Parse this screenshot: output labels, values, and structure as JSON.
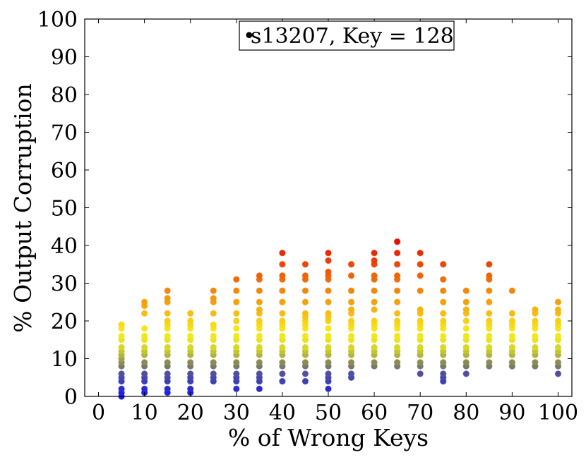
{
  "chart_data": {
    "type": "scatter",
    "legend": {
      "label": "s13207, Key = 128",
      "marker": "•",
      "placement": "top-center"
    },
    "xlabel": "% of Wrong Keys",
    "ylabel": "% Output Corruption",
    "xlim": [
      -3,
      103
    ],
    "ylim": [
      0,
      100
    ],
    "xticks": [
      0,
      10,
      20,
      30,
      40,
      50,
      60,
      70,
      80,
      90,
      100
    ],
    "yticks": [
      0,
      10,
      20,
      30,
      40,
      50,
      60,
      70,
      80,
      90,
      100
    ],
    "grid": false,
    "colormap": "low=#1a1aff, mid=#f5f01e, high=#e60000",
    "points": [
      {
        "x": 5,
        "ys": [
          0,
          1,
          2,
          4,
          5,
          6,
          8,
          9,
          10,
          11,
          12,
          13,
          15,
          16,
          18,
          19
        ]
      },
      {
        "x": 10,
        "ys": [
          1,
          2,
          4,
          5,
          6,
          8,
          9,
          11,
          12,
          13,
          15,
          16,
          18,
          22,
          24,
          25
        ]
      },
      {
        "x": 15,
        "ys": [
          1,
          2,
          4,
          5,
          6,
          8,
          9,
          11,
          12,
          13,
          15,
          16,
          18,
          19,
          20,
          22,
          25,
          26,
          28
        ]
      },
      {
        "x": 20,
        "ys": [
          1,
          2,
          4,
          5,
          6,
          8,
          9,
          11,
          12,
          13,
          15,
          16,
          18,
          19,
          20,
          22
        ]
      },
      {
        "x": 25,
        "ys": [
          4,
          5,
          6,
          8,
          9,
          11,
          12,
          13,
          15,
          16,
          18,
          19,
          22,
          25,
          26,
          28
        ]
      },
      {
        "x": 30,
        "ys": [
          2,
          4,
          5,
          6,
          8,
          9,
          11,
          12,
          13,
          15,
          16,
          18,
          20,
          22,
          25,
          28,
          31
        ]
      },
      {
        "x": 35,
        "ys": [
          2,
          4,
          5,
          6,
          8,
          9,
          11,
          12,
          13,
          15,
          16,
          18,
          19,
          20,
          22,
          23,
          25,
          28,
          31,
          32
        ]
      },
      {
        "x": 40,
        "ys": [
          4,
          6,
          8,
          9,
          11,
          12,
          13,
          15,
          16,
          18,
          19,
          20,
          22,
          25,
          28,
          31,
          32,
          35,
          38
        ]
      },
      {
        "x": 45,
        "ys": [
          4,
          6,
          8,
          9,
          11,
          12,
          13,
          15,
          16,
          18,
          19,
          20,
          21,
          22,
          25,
          28,
          31,
          32,
          35
        ]
      },
      {
        "x": 50,
        "ys": [
          2,
          4,
          5,
          6,
          8,
          9,
          11,
          12,
          13,
          15,
          16,
          18,
          20,
          21,
          22,
          25,
          28,
          31,
          32,
          33,
          36,
          38
        ]
      },
      {
        "x": 55,
        "ys": [
          5,
          6,
          8,
          9,
          11,
          12,
          13,
          15,
          16,
          18,
          19,
          20,
          22,
          23,
          25,
          28,
          32,
          35
        ]
      },
      {
        "x": 60,
        "ys": [
          8,
          9,
          11,
          12,
          13,
          15,
          16,
          18,
          19,
          20,
          23,
          25,
          28,
          31,
          32,
          35,
          36,
          38
        ]
      },
      {
        "x": 65,
        "ys": [
          8,
          9,
          11,
          12,
          13,
          15,
          16,
          18,
          19,
          20,
          22,
          25,
          28,
          31,
          32,
          35,
          38,
          41
        ]
      },
      {
        "x": 70,
        "ys": [
          6,
          8,
          9,
          11,
          12,
          13,
          15,
          16,
          18,
          19,
          20,
          22,
          23,
          28,
          32,
          35,
          38
        ]
      },
      {
        "x": 75,
        "ys": [
          4,
          5,
          6,
          8,
          9,
          11,
          12,
          13,
          15,
          16,
          18,
          19,
          20,
          22,
          25,
          28,
          31,
          35
        ]
      },
      {
        "x": 80,
        "ys": [
          6,
          8,
          9,
          11,
          12,
          13,
          15,
          16,
          18,
          20,
          22,
          23,
          25,
          28
        ]
      },
      {
        "x": 85,
        "ys": [
          8,
          9,
          11,
          12,
          13,
          15,
          16,
          18,
          19,
          20,
          22,
          25,
          28,
          31,
          32,
          35
        ]
      },
      {
        "x": 90,
        "ys": [
          8,
          9,
          11,
          12,
          13,
          15,
          16,
          18,
          19,
          20,
          22,
          28
        ]
      },
      {
        "x": 95,
        "ys": [
          8,
          9,
          11,
          12,
          13,
          15,
          16,
          18,
          19,
          20,
          22,
          23
        ]
      },
      {
        "x": 100,
        "ys": [
          6,
          8,
          9,
          11,
          12,
          13,
          15,
          16,
          18,
          19,
          20,
          22,
          23,
          25
        ]
      }
    ]
  }
}
